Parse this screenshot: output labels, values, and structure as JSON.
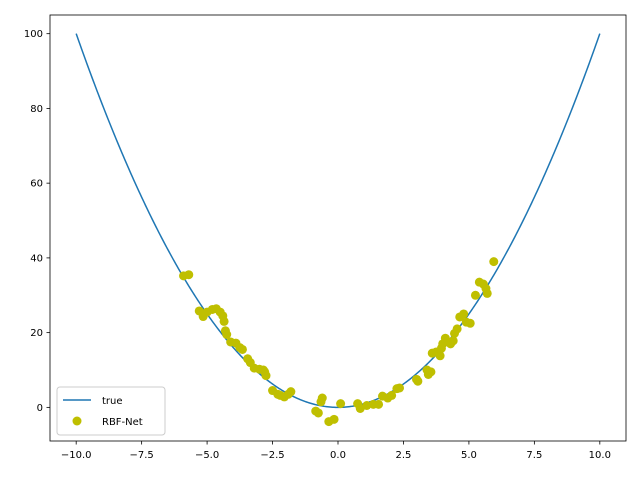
{
  "chart_data": {
    "type": "scatter",
    "title": "",
    "xlabel": "",
    "ylabel": "",
    "xlim": [
      -11.0,
      11.0
    ],
    "ylim": [
      -9.0,
      105.0
    ],
    "xticks": [
      -10.0,
      -7.5,
      -5.0,
      -2.5,
      0.0,
      2.5,
      5.0,
      7.5,
      10.0
    ],
    "xtick_labels": [
      "−10.0",
      "−7.5",
      "−5.0",
      "−2.5",
      "0.0",
      "2.5",
      "5.0",
      "7.5",
      "10.0"
    ],
    "yticks": [
      0,
      20,
      40,
      60,
      80,
      100
    ],
    "ytick_labels": [
      "0",
      "20",
      "40",
      "60",
      "80",
      "100"
    ],
    "grid": false,
    "legend_position": "lower-left",
    "series": [
      {
        "name": "true",
        "kind": "line",
        "color": "#1f77b4",
        "function": "y = x^2",
        "x_range": [
          -10,
          10
        ]
      },
      {
        "name": "RBF-Net",
        "kind": "scatter",
        "color": "#bfbf00",
        "points": [
          [
            -5.9,
            35.2
          ],
          [
            -5.7,
            35.5
          ],
          [
            -5.3,
            25.8
          ],
          [
            -5.15,
            24.3
          ],
          [
            -5.0,
            25.5
          ],
          [
            -4.8,
            26.2
          ],
          [
            -4.65,
            26.4
          ],
          [
            -4.5,
            25.5
          ],
          [
            -4.4,
            24.5
          ],
          [
            -4.35,
            23.0
          ],
          [
            -4.3,
            20.5
          ],
          [
            -4.25,
            19.5
          ],
          [
            -4.1,
            17.5
          ],
          [
            -3.9,
            17.2
          ],
          [
            -3.75,
            16.0
          ],
          [
            -3.65,
            15.5
          ],
          [
            -3.45,
            13.0
          ],
          [
            -3.35,
            12.0
          ],
          [
            -3.2,
            10.5
          ],
          [
            -3.0,
            10.2
          ],
          [
            -2.85,
            10.0
          ],
          [
            -2.8,
            9.5
          ],
          [
            -2.75,
            8.5
          ],
          [
            -2.5,
            4.5
          ],
          [
            -2.3,
            3.5
          ],
          [
            -2.2,
            3.2
          ],
          [
            -2.05,
            2.8
          ],
          [
            -1.9,
            3.5
          ],
          [
            -1.8,
            4.2
          ],
          [
            -0.85,
            -1.0
          ],
          [
            -0.75,
            -1.5
          ],
          [
            -0.65,
            1.5
          ],
          [
            -0.6,
            2.5
          ],
          [
            -0.35,
            -3.8
          ],
          [
            -0.15,
            -3.2
          ],
          [
            0.1,
            1.0
          ],
          [
            0.75,
            1.0
          ],
          [
            0.85,
            -0.3
          ],
          [
            1.1,
            0.5
          ],
          [
            1.35,
            0.8
          ],
          [
            1.55,
            0.8
          ],
          [
            1.7,
            3.0
          ],
          [
            1.9,
            2.5
          ],
          [
            2.05,
            3.2
          ],
          [
            2.25,
            5.0
          ],
          [
            2.35,
            5.2
          ],
          [
            3.0,
            7.5
          ],
          [
            3.05,
            7.0
          ],
          [
            3.4,
            10.0
          ],
          [
            3.45,
            8.8
          ],
          [
            3.55,
            9.5
          ],
          [
            3.6,
            14.5
          ],
          [
            3.75,
            14.8
          ],
          [
            3.9,
            13.8
          ],
          [
            3.95,
            15.8
          ],
          [
            4.0,
            17.0
          ],
          [
            4.1,
            18.5
          ],
          [
            4.2,
            17.5
          ],
          [
            4.3,
            17.0
          ],
          [
            4.4,
            17.8
          ],
          [
            4.45,
            19.8
          ],
          [
            4.55,
            21.0
          ],
          [
            4.65,
            24.2
          ],
          [
            4.8,
            25.0
          ],
          [
            4.9,
            22.8
          ],
          [
            5.05,
            22.5
          ],
          [
            5.25,
            30.0
          ],
          [
            5.4,
            33.5
          ],
          [
            5.55,
            33.0
          ],
          [
            5.65,
            31.8
          ],
          [
            5.7,
            30.5
          ],
          [
            5.95,
            39.0
          ]
        ]
      }
    ]
  }
}
